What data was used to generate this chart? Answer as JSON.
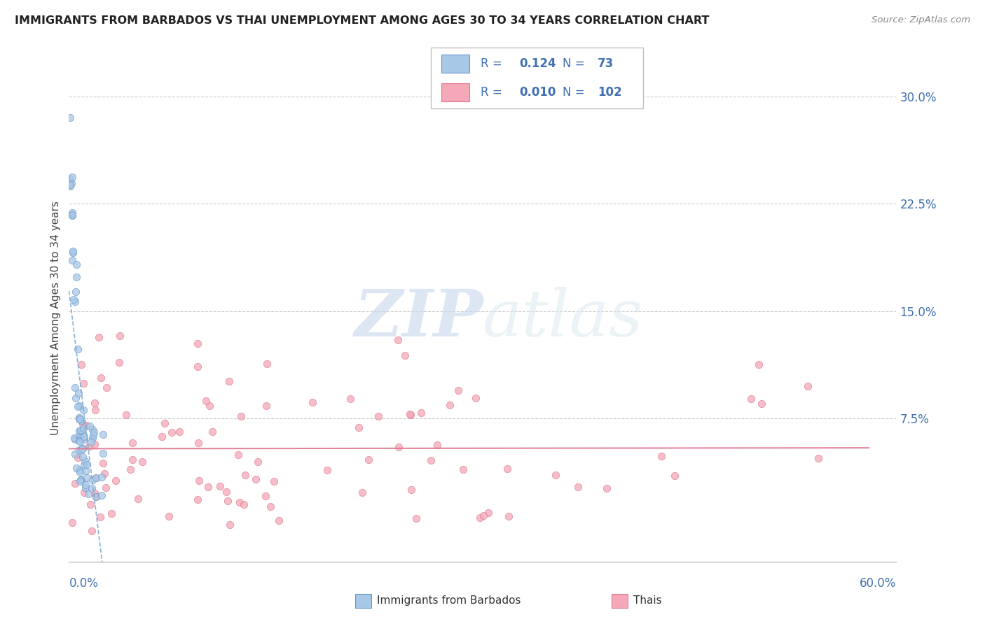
{
  "title": "IMMIGRANTS FROM BARBADOS VS THAI UNEMPLOYMENT AMONG AGES 30 TO 34 YEARS CORRELATION CHART",
  "source": "Source: ZipAtlas.com",
  "xmin": 0.0,
  "xmax": 0.6,
  "ymin": -0.025,
  "ymax": 0.315,
  "yticks": [
    0.075,
    0.15,
    0.225,
    0.3
  ],
  "ytick_labels": [
    "7.5%",
    "15.0%",
    "22.5%",
    "30.0%"
  ],
  "watermark_zip": "ZIP",
  "watermark_atlas": "atlas",
  "watermark_color": "#c5d8ec",
  "blue_R": "0.124",
  "blue_N": "73",
  "pink_R": "0.010",
  "pink_N": "102",
  "blue_fill": "#a8c8e8",
  "blue_edge": "#6898c8",
  "pink_fill": "#f4a8b8",
  "pink_edge": "#e07890",
  "legend_text_color": "#4070b0",
  "ylabel_color": "#4070b0",
  "title_color": "#222222",
  "source_color": "#888888",
  "xlabel_color": "#4070b0",
  "trend_blue_color": "#7aaad0",
  "trend_pink_color": "#e07890",
  "grid_color": "#cccccc"
}
